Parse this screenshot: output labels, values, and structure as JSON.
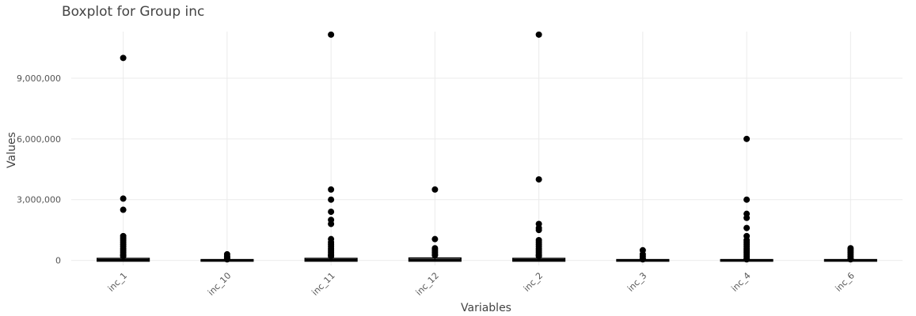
{
  "chart_data": {
    "type": "boxplot",
    "title": "Boxplot for Group inc",
    "xlabel": "Variables",
    "ylabel": "Values",
    "ylim": [
      -250000,
      11300000
    ],
    "y_ticks": [
      0,
      3000000,
      6000000,
      9000000
    ],
    "y_tick_labels": [
      "0",
      "3,000,000",
      "6,000,000",
      "9,000,000"
    ],
    "grid": true,
    "categories": [
      "inc_1",
      "inc_10",
      "inc_11",
      "inc_12",
      "inc_2",
      "inc_3",
      "inc_4",
      "inc_6"
    ],
    "boxes": [
      {
        "category": "inc_1",
        "q1": 0,
        "median": 20000,
        "q3": 60000,
        "whisker_low": 0,
        "whisker_high": 150000,
        "outliers": [
          10000000,
          3050000,
          2500000,
          1200000,
          1100000,
          1000000,
          900000,
          800000,
          700000,
          600000,
          500000,
          400000,
          300000,
          250000,
          200000
        ]
      },
      {
        "category": "inc_10",
        "q1": 0,
        "median": 0,
        "q3": 0,
        "whisker_low": 0,
        "whisker_high": 0,
        "outliers": [
          300000,
          200000,
          150000,
          100000,
          50000
        ]
      },
      {
        "category": "inc_11",
        "q1": 0,
        "median": 20000,
        "q3": 60000,
        "whisker_low": 0,
        "whisker_high": 150000,
        "outliers": [
          11150000,
          3500000,
          3000000,
          2400000,
          2000000,
          1800000,
          1050000,
          900000,
          800000,
          700000,
          600000,
          500000,
          400000,
          300000,
          250000,
          200000
        ]
      },
      {
        "category": "inc_12",
        "q1": 0,
        "median": 30000,
        "q3": 80000,
        "whisker_low": 0,
        "whisker_high": 200000,
        "outliers": [
          3500000,
          1050000,
          600000,
          500000,
          400000,
          300000,
          250000
        ]
      },
      {
        "category": "inc_2",
        "q1": 0,
        "median": 20000,
        "q3": 60000,
        "whisker_low": 0,
        "whisker_high": 150000,
        "outliers": [
          11150000,
          4000000,
          1800000,
          1600000,
          1500000,
          1000000,
          900000,
          800000,
          700000,
          600000,
          500000,
          400000,
          300000,
          250000,
          200000
        ]
      },
      {
        "category": "inc_3",
        "q1": 0,
        "median": 0,
        "q3": 0,
        "whisker_low": 0,
        "whisker_high": 0,
        "outliers": [
          500000,
          300000,
          200000,
          100000,
          50000
        ]
      },
      {
        "category": "inc_4",
        "q1": 0,
        "median": 0,
        "q3": 0,
        "whisker_low": 0,
        "whisker_high": 0,
        "outliers": [
          6000000,
          3000000,
          2300000,
          2100000,
          1600000,
          1200000,
          1000000,
          900000,
          800000,
          700000,
          600000,
          500000,
          400000,
          300000,
          200000,
          100000,
          50000
        ]
      },
      {
        "category": "inc_6",
        "q1": 0,
        "median": 0,
        "q3": 0,
        "whisker_low": 0,
        "whisker_high": 0,
        "outliers": [
          600000,
          500000,
          400000,
          300000,
          200000,
          100000,
          50000
        ]
      }
    ],
    "colors": {
      "marks": "#000000",
      "grid": "#ebebeb",
      "text": "#444444"
    }
  }
}
